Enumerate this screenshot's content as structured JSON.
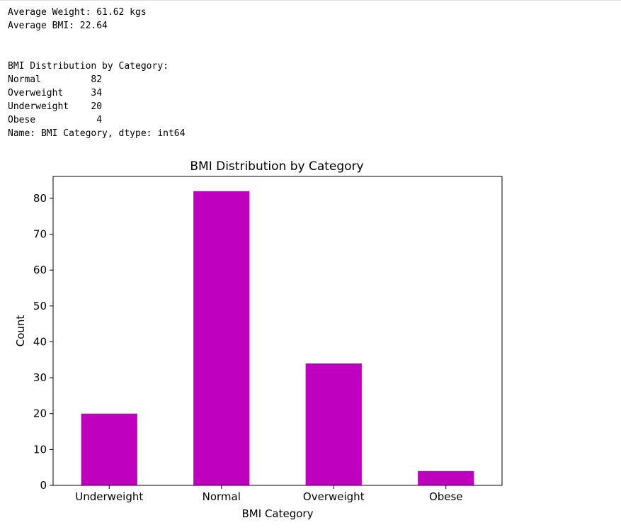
{
  "output": {
    "stdout_lines": [
      "Average Weight: 61.62 kgs",
      "Average BMI: 22.64",
      "",
      "",
      "BMI Distribution by Category:",
      "Normal         82",
      "Overweight     34",
      "Underweight    20",
      "Obese           4",
      "Name: BMI Category, dtype: int64"
    ]
  },
  "chart_data": {
    "type": "bar",
    "title": "BMI Distribution by Category",
    "xlabel": "BMI Category",
    "ylabel": "Count",
    "categories": [
      "Underweight",
      "Normal",
      "Overweight",
      "Obese"
    ],
    "values": [
      20,
      82,
      34,
      4
    ],
    "ylim": [
      0,
      86.1
    ],
    "yticks": [
      0,
      10,
      20,
      30,
      40,
      50,
      60,
      70,
      80
    ],
    "bar_color": "#bf00bf",
    "grid": false,
    "legend": "none"
  }
}
